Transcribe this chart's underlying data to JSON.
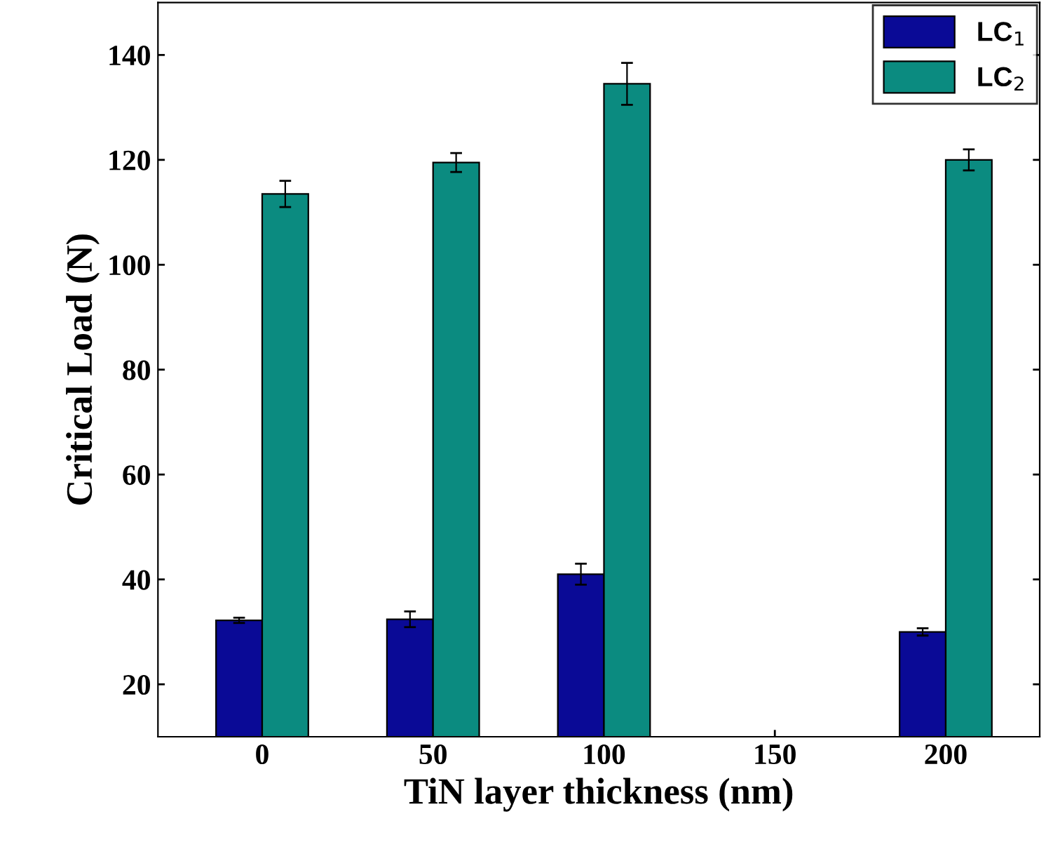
{
  "chart_data": {
    "type": "bar",
    "xlabel": "TiN layer thickness (nm)",
    "ylabel": "Critical Load (N)",
    "categories": [
      "0",
      "50",
      "100",
      "150",
      "200"
    ],
    "series": [
      {
        "name": "LC$_{1}$",
        "color": "#0a0a96",
        "values": [
          32.2,
          32.4,
          41,
          null,
          30
        ],
        "errors": [
          0.5,
          1.5,
          2,
          null,
          0.7
        ]
      },
      {
        "name": "LC$_{2}$",
        "color": "#0b8b80",
        "values": [
          113.5,
          119.5,
          134.5,
          null,
          120
        ],
        "errors": [
          2.5,
          1.8,
          4,
          null,
          2
        ]
      }
    ],
    "ylim": [
      10,
      150
    ],
    "yticks": [
      20,
      40,
      60,
      80,
      100,
      120,
      140
    ],
    "grid": false,
    "legend": "top right"
  }
}
